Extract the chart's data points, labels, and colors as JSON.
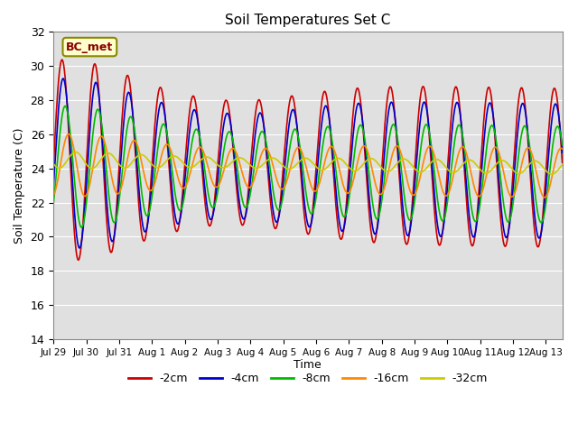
{
  "title": "Soil Temperatures Set C",
  "xlabel": "Time",
  "ylabel": "Soil Temperature (C)",
  "ylim": [
    14,
    32
  ],
  "yticks": [
    14,
    16,
    18,
    20,
    22,
    24,
    26,
    28,
    30,
    32
  ],
  "tick_labels": [
    "Jul 29",
    "Jul 30",
    "Jul 31",
    "Aug 1",
    "Aug 2",
    "Aug 3",
    "Aug 4",
    "Aug 5",
    "Aug 6",
    "Aug 7",
    "Aug 8",
    "Aug 9",
    "Aug 10",
    "Aug 11",
    "Aug 12",
    "Aug 13"
  ],
  "background_color": "#e0e0e0",
  "fig_background": "#ffffff",
  "label_box_text": "BC_met",
  "label_box_facecolor": "#ffffcc",
  "label_box_edgecolor": "#888800",
  "linewidth": 1.2,
  "series": [
    {
      "label": "-2cm",
      "color": "#cc0000"
    },
    {
      "label": "-4cm",
      "color": "#0000cc"
    },
    {
      "label": "-8cm",
      "color": "#00bb00"
    },
    {
      "label": "-16cm",
      "color": "#ff8800"
    },
    {
      "label": "-32cm",
      "color": "#cccc00"
    }
  ]
}
